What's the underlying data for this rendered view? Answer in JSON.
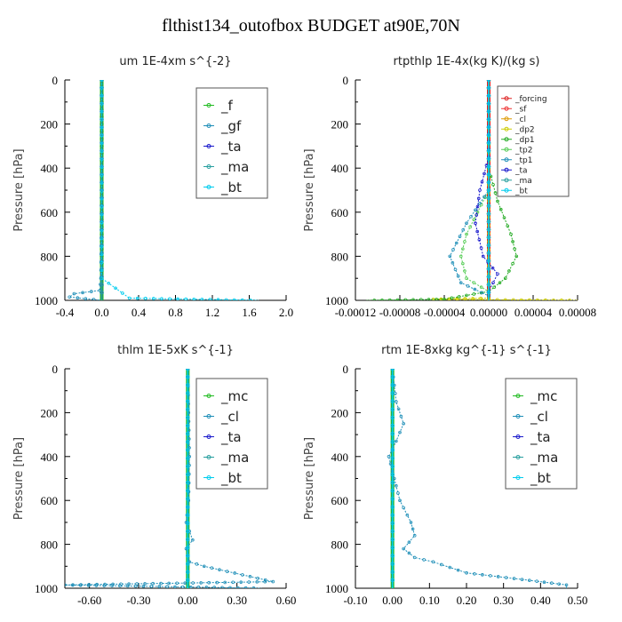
{
  "title": "flthist134_outofbox  BUDGET at90E,70N",
  "chart_data": [
    {
      "type": "line",
      "title": "um   1E-4xm s^{-2}",
      "ylabel": "Pressure [hPa]",
      "xlim": [
        -0.4,
        2.0
      ],
      "ylim": [
        0,
        1000
      ],
      "xticks": [
        "-0.4",
        "0.0",
        "0.4",
        "0.8",
        "1.2",
        "1.6",
        "2.0"
      ],
      "xtick_values": [
        -0.4,
        0.0,
        0.4,
        0.8,
        1.2,
        1.6,
        2.0
      ],
      "yticks": [
        "0",
        "200",
        "400",
        "600",
        "800",
        "1000"
      ],
      "ytick_values": [
        0,
        200,
        400,
        600,
        800,
        1000
      ],
      "legend_position": "top-right",
      "series": [
        {
          "name": "_f",
          "color": "#22bb22",
          "points": [
            [
              0,
              0
            ],
            [
              0,
              100
            ],
            [
              0,
              200
            ],
            [
              0,
              300
            ],
            [
              0,
              400
            ],
            [
              0,
              500
            ],
            [
              0,
              600
            ],
            [
              0,
              700
            ],
            [
              0,
              800
            ],
            [
              0,
              900
            ],
            [
              0,
              1000
            ]
          ]
        },
        {
          "name": "_gf",
          "color": "#1f8fb8",
          "points": [
            [
              0,
              0
            ],
            [
              0,
              500
            ],
            [
              -0.01,
              900
            ],
            [
              -0.02,
              955
            ],
            [
              -0.3,
              970
            ],
            [
              -0.35,
              985
            ],
            [
              0,
              1000
            ]
          ]
        },
        {
          "name": "_ta",
          "color": "#1a1acc",
          "points": [
            [
              0,
              0
            ],
            [
              0,
              1000
            ]
          ]
        },
        {
          "name": "_ma",
          "color": "#2aa0a0",
          "points": [
            [
              0,
              0
            ],
            [
              0,
              1000
            ]
          ]
        },
        {
          "name": "_bt",
          "color": "#00ccee",
          "points": [
            [
              0,
              0
            ],
            [
              0,
              900
            ],
            [
              0.3,
              990
            ],
            [
              1.0,
              995
            ],
            [
              1.7,
              1000
            ]
          ]
        }
      ]
    },
    {
      "type": "line",
      "title": "rtpthlp   1E-4x(kg K)/(kg s)",
      "ylabel": "Pressure [hPa]",
      "xlim": [
        -0.00012,
        8e-05
      ],
      "ylim": [
        0,
        1000
      ],
      "xticks": [
        "-0.00012",
        "-0.00008",
        "-0.00004",
        "0.00000",
        "0.00004",
        "0.00008"
      ],
      "xtick_values": [
        -0.00012,
        -8e-05,
        -4e-05,
        0.0,
        4e-05,
        8e-05
      ],
      "yticks": [
        "0",
        "200",
        "400",
        "600",
        "800",
        "1000"
      ],
      "ytick_values": [
        0,
        200,
        400,
        600,
        800,
        1000
      ],
      "legend_position": "top-right",
      "series": [
        {
          "name": "_forcing",
          "color": "#dd2222",
          "points": [
            [
              0,
              0
            ],
            [
              0,
              1000
            ]
          ]
        },
        {
          "name": "_sf",
          "color": "#ee3333",
          "points": [
            [
              0,
              0
            ],
            [
              0,
              1000
            ]
          ]
        },
        {
          "name": "_cl",
          "color": "#dd9900",
          "points": [
            [
              0,
              0
            ],
            [
              0,
              1000
            ]
          ]
        },
        {
          "name": "_dp2",
          "color": "#cccc00",
          "points": [
            [
              0,
              0
            ],
            [
              0,
              990
            ],
            [
              -5e-05,
              995
            ],
            [
              8e-05,
              1000
            ]
          ]
        },
        {
          "name": "_dp1",
          "color": "#22aa22",
          "points": [
            [
              0,
              0
            ],
            [
              0,
              400
            ],
            [
              8e-06,
              550
            ],
            [
              2e-05,
              700
            ],
            [
              2.5e-05,
              800
            ],
            [
              1.5e-05,
              900
            ],
            [
              0,
              960
            ],
            [
              -4e-05,
              995
            ],
            [
              -0.00011,
              1000
            ]
          ]
        },
        {
          "name": "_tp2",
          "color": "#55cc55",
          "points": [
            [
              0,
              0
            ],
            [
              0,
              500
            ],
            [
              -1e-05,
              600
            ],
            [
              -2e-05,
              700
            ],
            [
              -2.5e-05,
              800
            ],
            [
              -2e-05,
              900
            ],
            [
              0,
              960
            ],
            [
              0,
              1000
            ]
          ]
        },
        {
          "name": "_tp1",
          "color": "#1f8fb8",
          "points": [
            [
              0,
              0
            ],
            [
              0,
              500
            ],
            [
              -2e-05,
              650
            ],
            [
              -3.5e-05,
              800
            ],
            [
              -2.5e-05,
              920
            ],
            [
              0,
              980
            ],
            [
              0,
              1000
            ]
          ]
        },
        {
          "name": "_ta",
          "color": "#1a1acc",
          "points": [
            [
              0,
              0
            ],
            [
              0,
              350
            ],
            [
              -8e-06,
              500
            ],
            [
              -1.2e-05,
              650
            ],
            [
              -5e-06,
              800
            ],
            [
              8e-06,
              880
            ],
            [
              0,
              960
            ],
            [
              0,
              1000
            ]
          ]
        },
        {
          "name": "_ma",
          "color": "#2aa0a0",
          "points": [
            [
              0,
              0
            ],
            [
              0,
              1000
            ]
          ]
        },
        {
          "name": "_bt",
          "color": "#00ccee",
          "points": [
            [
              0,
              0
            ],
            [
              0,
              1000
            ]
          ]
        }
      ]
    },
    {
      "type": "line",
      "title": "thlm   1E-5xK s^{-1}",
      "ylabel": "Pressure [hPa]",
      "xlim": [
        -0.75,
        0.6
      ],
      "ylim": [
        0,
        1000
      ],
      "xticks": [
        "-0.60",
        "-0.30",
        "0.00",
        "0.30",
        "0.60"
      ],
      "xtick_values": [
        -0.6,
        -0.3,
        0.0,
        0.3,
        0.6
      ],
      "yticks": [
        "0",
        "200",
        "400",
        "600",
        "800",
        "1000"
      ],
      "ytick_values": [
        0,
        200,
        400,
        600,
        800,
        1000
      ],
      "legend_position": "top-right",
      "series": [
        {
          "name": "_mc",
          "color": "#22bb22",
          "points": [
            [
              0,
              0
            ],
            [
              0,
              1000
            ]
          ]
        },
        {
          "name": "_cl",
          "color": "#1f8fb8",
          "points": [
            [
              0,
              0
            ],
            [
              0.005,
              200
            ],
            [
              0.01,
              400
            ],
            [
              0.005,
              600
            ],
            [
              -0.01,
              700
            ],
            [
              0.03,
              780
            ],
            [
              -0.01,
              820
            ],
            [
              0.01,
              880
            ],
            [
              0.1,
              900
            ],
            [
              0.52,
              970
            ],
            [
              -0.75,
              985
            ],
            [
              0.45,
              1000
            ]
          ]
        },
        {
          "name": "_ta",
          "color": "#1a1acc",
          "points": [
            [
              0,
              0
            ],
            [
              0,
              1000
            ]
          ]
        },
        {
          "name": "_ma",
          "color": "#2aa0a0",
          "points": [
            [
              0,
              0
            ],
            [
              0,
              1000
            ]
          ]
        },
        {
          "name": "_bt",
          "color": "#00ccee",
          "points": [
            [
              0,
              0
            ],
            [
              0,
              1000
            ]
          ]
        }
      ]
    },
    {
      "type": "line",
      "title": "rtm   1E-8xkg kg^{-1} s^{-1}",
      "ylabel": "Pressure [hPa]",
      "xlim": [
        -0.1,
        0.5
      ],
      "ylim": [
        0,
        1000
      ],
      "xticks": [
        "-0.10",
        "0.00",
        "0.10",
        "0.20",
        "0.30",
        "0.40",
        "0.50"
      ],
      "xtick_values": [
        -0.1,
        0.0,
        0.1,
        0.2,
        0.3,
        0.4,
        0.5
      ],
      "yticks": [
        "0",
        "200",
        "400",
        "600",
        "800",
        "1000"
      ],
      "ytick_values": [
        0,
        200,
        400,
        600,
        800,
        1000
      ],
      "legend_position": "top-right",
      "series": [
        {
          "name": "_mc",
          "color": "#22bb22",
          "points": [
            [
              0,
              0
            ],
            [
              0,
              1000
            ]
          ]
        },
        {
          "name": "_cl",
          "color": "#1f8fb8",
          "points": [
            [
              0,
              0
            ],
            [
              0.01,
              150
            ],
            [
              0.03,
              250
            ],
            [
              0.01,
              330
            ],
            [
              -0.01,
              400
            ],
            [
              0.005,
              500
            ],
            [
              0.02,
              600
            ],
            [
              0.05,
              700
            ],
            [
              0.06,
              760
            ],
            [
              0.03,
              820
            ],
            [
              0.06,
              860
            ],
            [
              0.11,
              880
            ],
            [
              0.2,
              930
            ],
            [
              0.35,
              960
            ],
            [
              0.47,
              985
            ],
            [
              0.47,
              1000
            ]
          ]
        },
        {
          "name": "_ta",
          "color": "#1a1acc",
          "points": [
            [
              0,
              0
            ],
            [
              0,
              1000
            ]
          ]
        },
        {
          "name": "_ma",
          "color": "#2aa0a0",
          "points": [
            [
              0,
              0
            ],
            [
              0,
              1000
            ]
          ]
        },
        {
          "name": "_bt",
          "color": "#00ccee",
          "points": [
            [
              0,
              0
            ],
            [
              0,
              1000
            ]
          ]
        }
      ]
    }
  ]
}
